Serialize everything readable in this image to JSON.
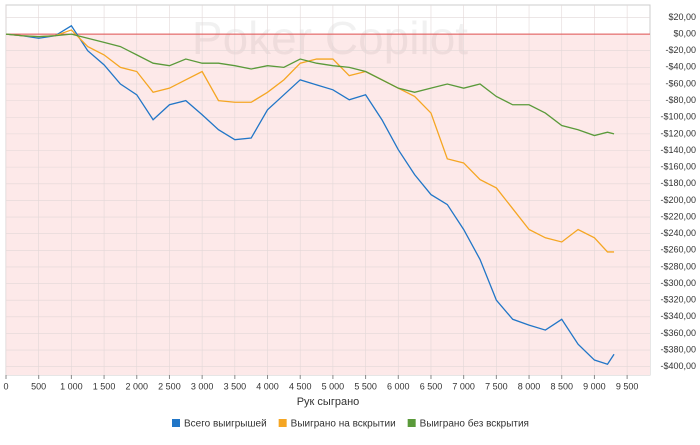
{
  "chart_data": {
    "type": "line",
    "watermark": "Poker Copilot",
    "xlabel": "Рук сыграно",
    "x": [
      0,
      250,
      500,
      750,
      1000,
      1250,
      1500,
      1750,
      2000,
      2250,
      2500,
      2750,
      3000,
      3250,
      3500,
      3750,
      4000,
      4250,
      4500,
      4750,
      5000,
      5250,
      5500,
      5750,
      6000,
      6250,
      6500,
      6750,
      7000,
      7250,
      7500,
      7750,
      8000,
      8250,
      8500,
      8750,
      9000,
      9200,
      9300
    ],
    "series": [
      {
        "name": "Всего выигрышей",
        "color": "#2176c7",
        "values": [
          0,
          -2,
          -5,
          -2,
          10,
          -20,
          -37,
          -60,
          -73,
          -103,
          -85,
          -80,
          -97,
          -115,
          -127,
          -125,
          -91,
          -73,
          -55,
          -61,
          -67,
          -79,
          -73,
          -103,
          -139,
          -169,
          -193,
          -205,
          -235,
          -271,
          -320,
          -343,
          -350,
          -356,
          -343,
          -373,
          -392,
          -397,
          -385
        ]
      },
      {
        "name": "Выиграно на вскрытии",
        "color": "#f5a623",
        "values": [
          0,
          -2,
          -3,
          -2,
          5,
          -15,
          -25,
          -40,
          -45,
          -70,
          -65,
          -55,
          -45,
          -80,
          -82,
          -82,
          -70,
          -55,
          -35,
          -30,
          -30,
          -50,
          -45,
          -55,
          -65,
          -75,
          -95,
          -150,
          -155,
          -175,
          -185,
          -210,
          -235,
          -245,
          -250,
          -235,
          -245,
          -262,
          -262
        ]
      },
      {
        "name": "Выиграно без вскрытия",
        "color": "#5a9a3a",
        "values": [
          0,
          -2,
          -3,
          -2,
          0,
          -5,
          -10,
          -15,
          -25,
          -35,
          -38,
          -30,
          -35,
          -35,
          -38,
          -42,
          -38,
          -40,
          -30,
          -35,
          -38,
          -40,
          -45,
          -55,
          -65,
          -70,
          -65,
          -60,
          -65,
          -60,
          -75,
          -85,
          -85,
          -95,
          -110,
          -115,
          -122,
          -118,
          -120
        ]
      }
    ],
    "xlim": [
      0,
      9850
    ],
    "xticks": [
      0,
      500,
      {
        "value": 1000,
        "label": "1 000"
      },
      {
        "value": 1500,
        "label": "1 500"
      },
      {
        "value": 2000,
        "label": "2 000"
      },
      {
        "value": 2500,
        "label": "2 500"
      },
      {
        "value": 3000,
        "label": "3 000"
      },
      {
        "value": 3500,
        "label": "3 500"
      },
      {
        "value": 4000,
        "label": "4 000"
      },
      {
        "value": 4500,
        "label": "4 500"
      },
      {
        "value": 5000,
        "label": "5 000"
      },
      {
        "value": 5500,
        "label": "5 500"
      },
      {
        "value": 6000,
        "label": "6 000"
      },
      {
        "value": 6500,
        "label": "6 500"
      },
      {
        "value": 7000,
        "label": "7 000"
      },
      {
        "value": 7500,
        "label": "7 500"
      },
      {
        "value": 8000,
        "label": "8 000"
      },
      {
        "value": 8500,
        "label": "8 500"
      },
      {
        "value": 9000,
        "label": "9 000"
      },
      {
        "value": 9500,
        "label": "9 500"
      }
    ],
    "ylim": [
      -410,
      35
    ],
    "yticks": [
      {
        "value": 20,
        "label": "$20,00"
      },
      {
        "value": 0,
        "label": "$0,00"
      },
      {
        "value": -20,
        "label": "-$20,00"
      },
      {
        "value": -40,
        "label": "-$40,00"
      },
      {
        "value": -60,
        "label": "-$60,00"
      },
      {
        "value": -80,
        "label": "-$80,00"
      },
      {
        "value": -100,
        "label": "-$100,00"
      },
      {
        "value": -120,
        "label": "-$120,00"
      },
      {
        "value": -140,
        "label": "-$140,00"
      },
      {
        "value": -160,
        "label": "-$160,00"
      },
      {
        "value": -180,
        "label": "-$180,00"
      },
      {
        "value": -200,
        "label": "-$200,00"
      },
      {
        "value": -220,
        "label": "-$220,00"
      },
      {
        "value": -240,
        "label": "-$240,00"
      },
      {
        "value": -260,
        "label": "-$260,00"
      },
      {
        "value": -280,
        "label": "-$280,00"
      },
      {
        "value": -300,
        "label": "-$300,00"
      },
      {
        "value": -320,
        "label": "-$320,00"
      },
      {
        "value": -340,
        "label": "-$340,00"
      },
      {
        "value": -360,
        "label": "-$360,00"
      },
      {
        "value": -380,
        "label": "-$380,00"
      },
      {
        "value": -400,
        "label": "-$400,00"
      }
    ],
    "grid": true
  }
}
